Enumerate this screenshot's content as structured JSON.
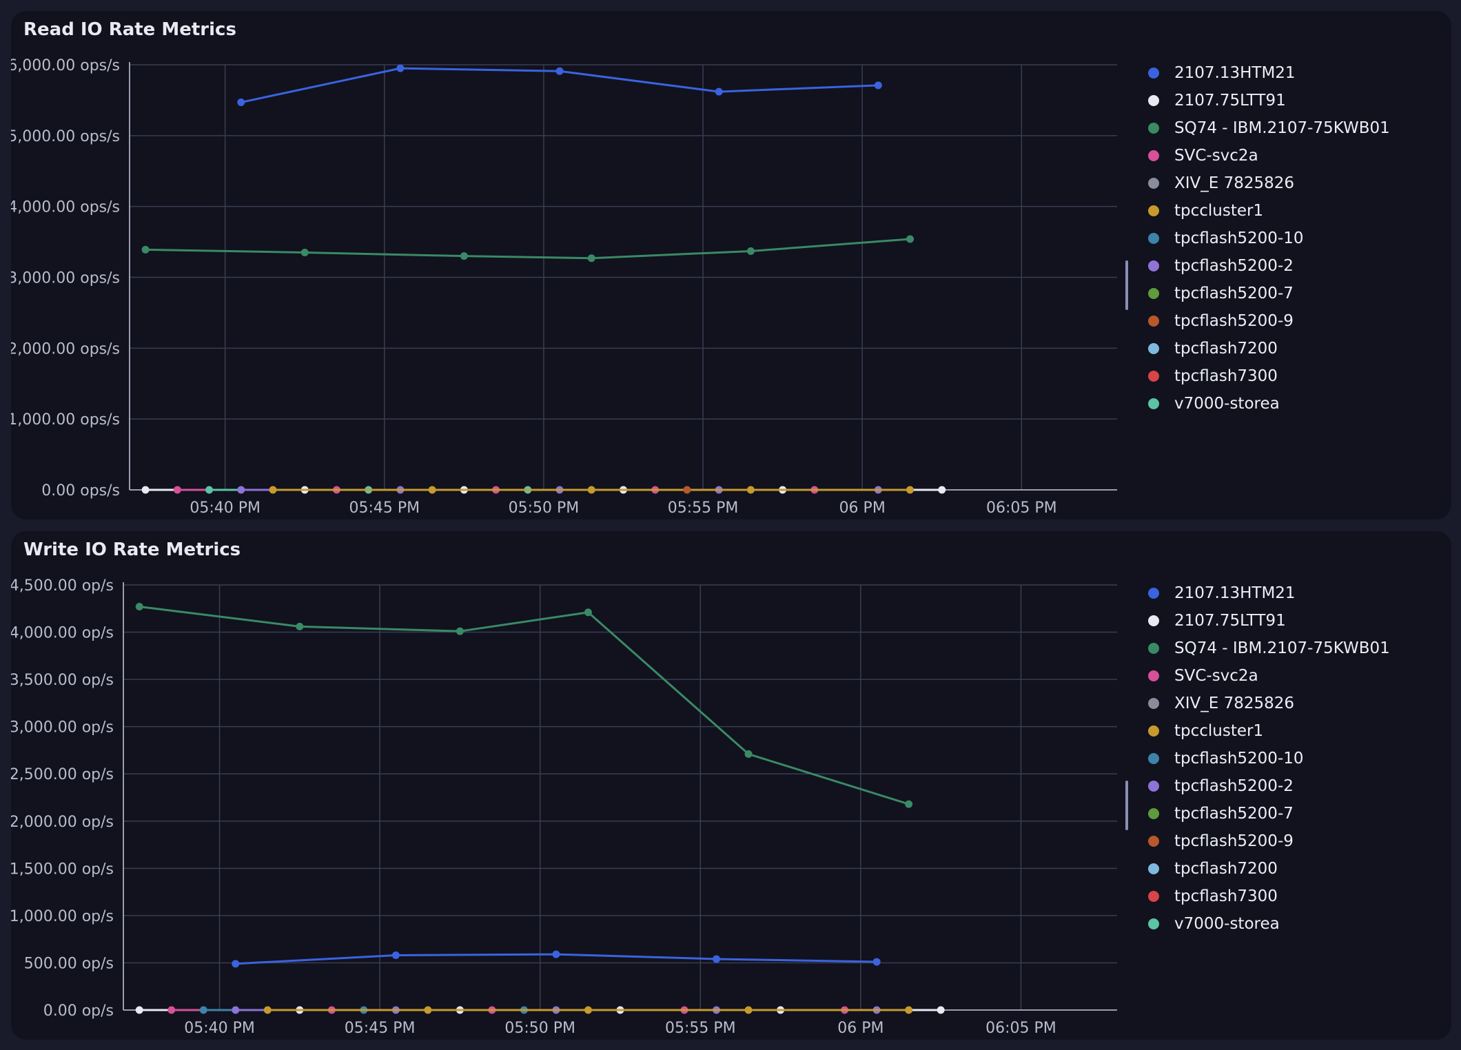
{
  "colors": {
    "2107.13HTM21": "#3b63e0",
    "2107.75LTT91": "#e8e9f1",
    "SQ74 - IBM.2107-75KWB01": "#3a8a66",
    "SVC-svc2a": "#d6509a",
    "XIV_E 7825826": "#8a8c9e",
    "tpccluster1": "#c89a2e",
    "tpcflash5200-10": "#3d84a8",
    "tpcflash5200-2": "#8d74d6",
    "tpcflash5200-7": "#5f9a3c",
    "tpcflash5200-9": "#b8582a",
    "tpcflash7200": "#7fb9e0",
    "tpcflash7300": "#d84448",
    "v7000-storea": "#5cc3a4"
  },
  "chart_data": [
    {
      "id": "read",
      "type": "line",
      "title": "Read IO Rate Metrics",
      "unit": "ops/s",
      "x_tick_labels": [
        "05:40 PM",
        "05:45 PM",
        "05:50 PM",
        "05:55 PM",
        "06 PM",
        "06:05 PM"
      ],
      "x_tick_times": [
        "17:40",
        "17:45",
        "17:50",
        "17:55",
        "18:00",
        "18:05"
      ],
      "x_range": [
        "17:37",
        "18:08"
      ],
      "ylim": [
        0,
        6000
      ],
      "y_ticks": [
        0,
        1000,
        2000,
        3000,
        4000,
        5000,
        6000
      ],
      "y_tick_labels": [
        "0.00 ops/s",
        "1,000.00 ops/s",
        "2,000.00 ops/s",
        "3,000.00 ops/s",
        "4,000.00 ops/s",
        "5,000.00 ops/s",
        "6,000.00 ops/s"
      ],
      "grid": true,
      "legend_position": "right",
      "legend": [
        "2107.13HTM21",
        "2107.75LTT91",
        "SQ74 - IBM.2107-75KWB01",
        "SVC-svc2a",
        "XIV_E 7825826",
        "tpccluster1",
        "tpcflash5200-10",
        "tpcflash5200-2",
        "tpcflash5200-7",
        "tpcflash5200-9",
        "tpcflash7200",
        "tpcflash7300",
        "v7000-storea"
      ],
      "series": [
        {
          "name": "2107.13HTM21",
          "x": [
            "17:40:30",
            "17:45:30",
            "17:50:30",
            "17:55:30",
            "18:00:30"
          ],
          "y": [
            5470,
            5950,
            5910,
            5620,
            5710
          ]
        },
        {
          "name": "SQ74 - IBM.2107-75KWB01",
          "x": [
            "17:37:30",
            "17:42:30",
            "17:47:30",
            "17:51:30",
            "17:56:30",
            "18:01:30"
          ],
          "y": [
            3390,
            3350,
            3300,
            3270,
            3370,
            3540
          ]
        },
        {
          "name": "2107.75LTT91",
          "x": [
            "17:37:30",
            "17:42:30",
            "17:47:30",
            "17:52:30",
            "17:57:30",
            "18:02:30"
          ],
          "y": [
            0,
            0,
            0,
            0,
            0,
            0
          ]
        },
        {
          "name": "SVC-svc2a",
          "x": [
            "17:38:30",
            "17:43:30",
            "17:48:30",
            "17:53:30",
            "17:58:30"
          ],
          "y": [
            0,
            0,
            0,
            0,
            0
          ]
        },
        {
          "name": "v7000-storea",
          "x": [
            "17:39:30",
            "17:44:30",
            "17:49:30"
          ],
          "y": [
            0,
            0,
            0
          ]
        },
        {
          "name": "tpcflash5200-2",
          "x": [
            "17:40:30",
            "17:45:30",
            "17:50:30",
            "17:55:30",
            "18:00:30"
          ],
          "y": [
            0,
            0,
            0,
            0,
            0
          ]
        },
        {
          "name": "tpccluster1",
          "x": [
            "17:41:30",
            "17:46:30",
            "17:51:30",
            "17:56:30",
            "18:01:30"
          ],
          "y": [
            0,
            0,
            0,
            0,
            0
          ]
        },
        {
          "name": "tpcflash5200-9",
          "x": [
            "17:54:30"
          ],
          "y": [
            0
          ]
        }
      ]
    },
    {
      "id": "write",
      "type": "line",
      "title": "Write IO Rate Metrics",
      "unit": "op/s",
      "x_tick_labels": [
        "05:40 PM",
        "05:45 PM",
        "05:50 PM",
        "05:55 PM",
        "06 PM",
        "06:05 PM"
      ],
      "x_tick_times": [
        "17:40",
        "17:45",
        "17:50",
        "17:55",
        "18:00",
        "18:05"
      ],
      "x_range": [
        "17:37",
        "18:08"
      ],
      "ylim": [
        0,
        4500
      ],
      "y_ticks": [
        0,
        500,
        1000,
        1500,
        2000,
        2500,
        3000,
        3500,
        4000,
        4500
      ],
      "y_tick_labels": [
        "0.00 op/s",
        "500.00 op/s",
        "1,000.00 op/s",
        "1,500.00 op/s",
        "2,000.00 op/s",
        "2,500.00 op/s",
        "3,000.00 op/s",
        "3,500.00 op/s",
        "4,000.00 op/s",
        "4,500.00 op/s"
      ],
      "grid": true,
      "legend_position": "right",
      "legend": [
        "2107.13HTM21",
        "2107.75LTT91",
        "SQ74 - IBM.2107-75KWB01",
        "SVC-svc2a",
        "XIV_E 7825826",
        "tpccluster1",
        "tpcflash5200-10",
        "tpcflash5200-2",
        "tpcflash5200-7",
        "tpcflash5200-9",
        "tpcflash7200",
        "tpcflash7300",
        "v7000-storea"
      ],
      "series": [
        {
          "name": "SQ74 - IBM.2107-75KWB01",
          "x": [
            "17:37:30",
            "17:42:30",
            "17:47:30",
            "17:51:30",
            "17:56:30",
            "18:01:30"
          ],
          "y": [
            4270,
            4060,
            4010,
            4210,
            2710,
            2180
          ]
        },
        {
          "name": "2107.13HTM21",
          "x": [
            "17:40:30",
            "17:45:30",
            "17:50:30",
            "17:55:30",
            "18:00:30"
          ],
          "y": [
            490,
            580,
            590,
            540,
            510
          ]
        },
        {
          "name": "2107.75LTT91",
          "x": [
            "17:37:30",
            "17:42:30",
            "17:47:30",
            "17:52:30",
            "17:57:30",
            "18:02:30"
          ],
          "y": [
            0,
            0,
            0,
            0,
            0,
            0
          ]
        },
        {
          "name": "SVC-svc2a",
          "x": [
            "17:38:30",
            "17:43:30",
            "17:48:30",
            "17:54:30",
            "17:59:30"
          ],
          "y": [
            0,
            0,
            0,
            0,
            0
          ]
        },
        {
          "name": "tpcflash5200-10",
          "x": [
            "17:39:30",
            "17:44:30",
            "17:49:30"
          ],
          "y": [
            0,
            0,
            0
          ]
        },
        {
          "name": "tpcflash5200-2",
          "x": [
            "17:40:30",
            "17:45:30",
            "17:50:30",
            "17:55:30",
            "18:00:30"
          ],
          "y": [
            0,
            0,
            0,
            0,
            0
          ]
        },
        {
          "name": "tpccluster1",
          "x": [
            "17:41:30",
            "17:46:30",
            "17:51:30",
            "17:56:30",
            "18:01:30"
          ],
          "y": [
            0,
            0,
            0,
            0,
            0
          ]
        }
      ]
    }
  ]
}
